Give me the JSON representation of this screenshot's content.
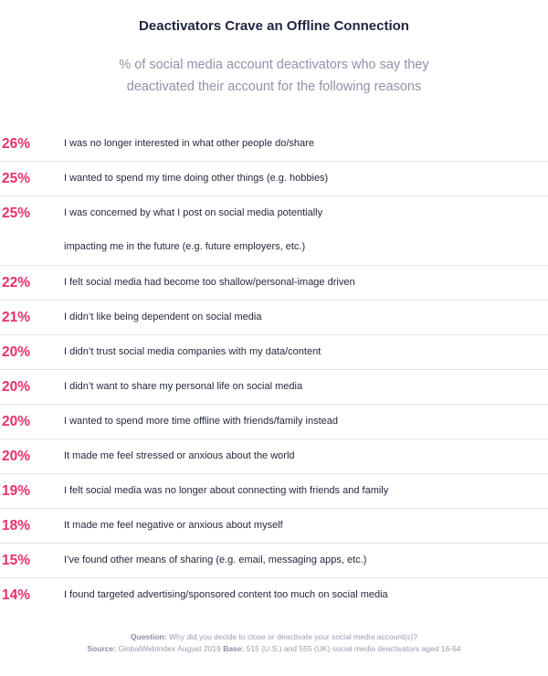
{
  "chart_data": {
    "type": "table",
    "title": "Deactivators Crave an Offline Connection",
    "subtitle_lines": [
      "% of social media account deactivators who say they",
      "deactivated their account for the following reasons"
    ],
    "rows": [
      {
        "value": 26,
        "label": "26%",
        "reason": [
          "I was no longer interested in what other people do/share"
        ]
      },
      {
        "value": 25,
        "label": "25%",
        "reason": [
          "I wanted to spend my time doing other things (e.g. hobbies)"
        ]
      },
      {
        "value": 25,
        "label": "25%",
        "reason": [
          "I was concerned by what I post on social media potentially",
          "impacting me in the future (e.g. future employers, etc.)"
        ]
      },
      {
        "value": 22,
        "label": "22%",
        "reason": [
          "I felt social media had become too shallow/personal-image driven"
        ]
      },
      {
        "value": 21,
        "label": "21%",
        "reason": [
          "I didn’t like being dependent on social media"
        ]
      },
      {
        "value": 20,
        "label": "20%",
        "reason": [
          "I didn’t trust social media companies with my data/content"
        ]
      },
      {
        "value": 20,
        "label": "20%",
        "reason": [
          "I didn’t want to share my personal life on social media"
        ]
      },
      {
        "value": 20,
        "label": "20%",
        "reason": [
          "I wanted to spend more time offline with friends/family instead"
        ]
      },
      {
        "value": 20,
        "label": "20%",
        "reason": [
          "It made me feel stressed or anxious about the world"
        ]
      },
      {
        "value": 19,
        "label": "19%",
        "reason": [
          "I felt social media was no longer about connecting with friends and family"
        ]
      },
      {
        "value": 18,
        "label": "18%",
        "reason": [
          "It made me feel negative or anxious about myself"
        ]
      },
      {
        "value": 15,
        "label": "15%",
        "reason": [
          "I’ve found other means of sharing (e.g. email, messaging apps, etc.)"
        ]
      },
      {
        "value": 14,
        "label": "14%",
        "reason": [
          "I found targeted advertising/sponsored content too much on social media"
        ]
      }
    ]
  },
  "footer": {
    "question_label": "Question:",
    "question_text": "Why did you decide to close or deactivate your social media account(s)?",
    "source_label": "Source:",
    "source_text": "GlobalWebIndex August 2019",
    "base_label": "Base:",
    "base_text": "515 (U.S.) and 555 (UK) social media deactivators aged 16-64"
  },
  "colors": {
    "accent": "#e5316f",
    "title": "#1f2540",
    "subtitle": "#8f93a8",
    "divider": "#e4e5ea"
  }
}
